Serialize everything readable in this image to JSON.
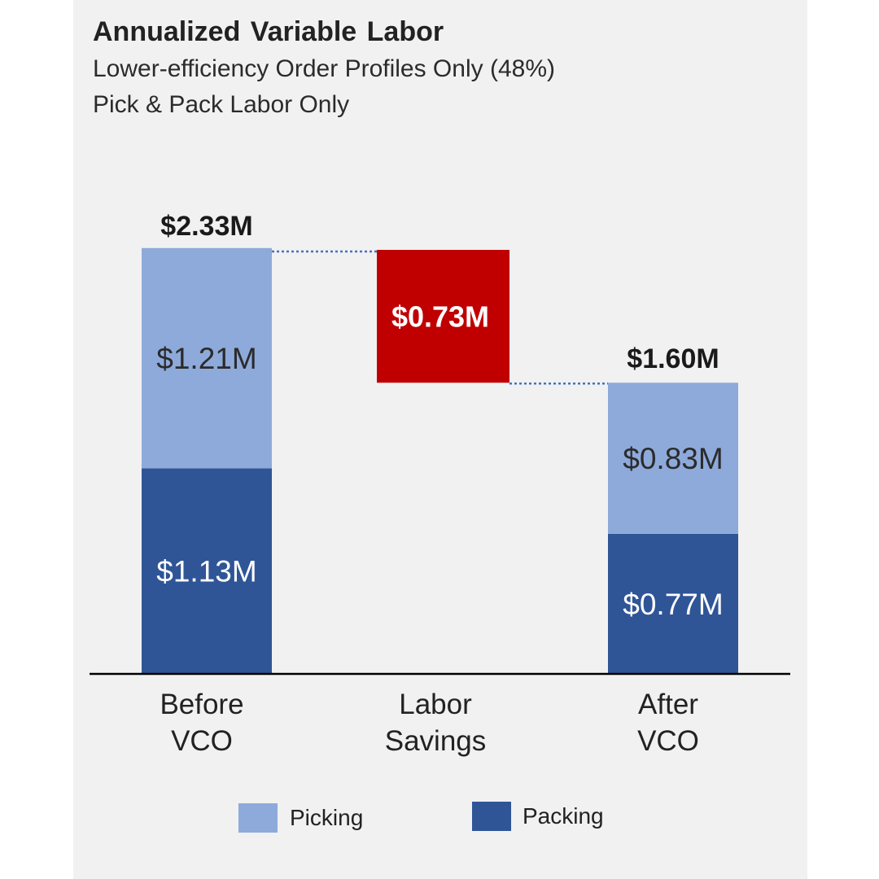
{
  "chart_data": {
    "type": "waterfall-stacked-bar",
    "title": "Annualized Variable Labor",
    "subtitle_lines": [
      "Lower-efficiency Order Profiles Only (48%)",
      "Pick & Pack Labor Only"
    ],
    "categories": [
      {
        "lines": [
          "Before",
          "VCO"
        ]
      },
      {
        "lines": [
          "Labor",
          "Savings"
        ]
      },
      {
        "lines": [
          "After",
          "VCO"
        ]
      }
    ],
    "units": "$M",
    "bars": [
      {
        "kind": "stack",
        "total": 2.33,
        "total_label": "$2.33M",
        "segments": [
          {
            "series": "Packing",
            "value": 1.13,
            "label": "$1.13M"
          },
          {
            "series": "Picking",
            "value": 1.21,
            "label": "$1.21M"
          }
        ]
      },
      {
        "kind": "delta",
        "from": 2.33,
        "to": 1.6,
        "value": 0.73,
        "label": "$0.73M"
      },
      {
        "kind": "stack",
        "total": 1.6,
        "total_label": "$1.60M",
        "segments": [
          {
            "series": "Packing",
            "value": 0.77,
            "label": "$0.77M"
          },
          {
            "series": "Picking",
            "value": 0.83,
            "label": "$0.83M"
          }
        ]
      }
    ],
    "ylim": [
      0,
      2.33
    ],
    "legend": {
      "position": "bottom",
      "entries": [
        {
          "name": "Picking",
          "color": "#8eaadb"
        },
        {
          "name": "Packing",
          "color": "#2f5597"
        }
      ]
    },
    "colors": {
      "picking": "#8eaadb",
      "packing": "#2f5597",
      "savings": "#c00000",
      "connector": "#4472c4",
      "axis": "#000000"
    }
  }
}
